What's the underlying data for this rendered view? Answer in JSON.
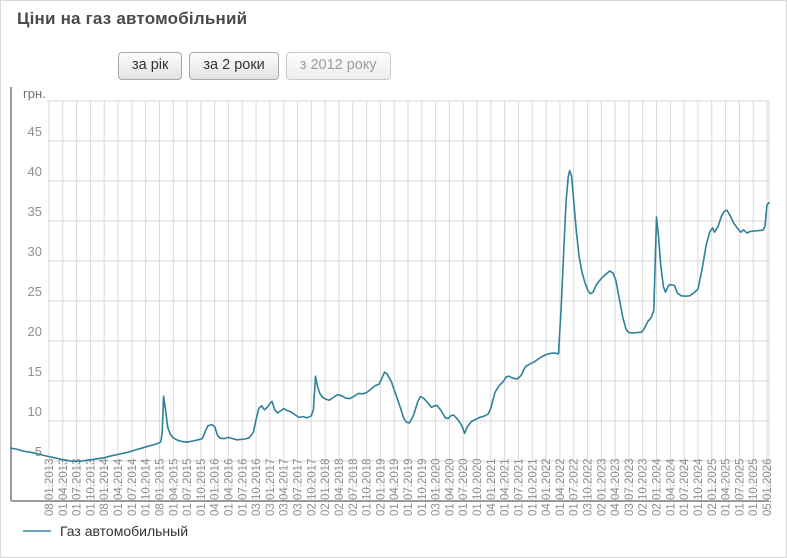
{
  "page": {
    "title": "Ціни на газ автомобільний"
  },
  "buttons": {
    "year_label": "за рік",
    "two_years_label": "за 2 роки",
    "since_2012_label": "з 2012 року"
  },
  "legend": {
    "label": "Газ автомобильный"
  },
  "colors": {
    "line": "#2f8099",
    "legend_line": "#6ba7bc",
    "grid": "#d9d9d9",
    "axis": "#9b9b9b",
    "tick_text": "#8f8f8f",
    "unit_text": "#6f6f6f"
  },
  "chart_data": {
    "type": "line",
    "title": "Ціни на газ автомобільний",
    "xlabel": "",
    "ylabel": "грн.",
    "unit_label": "грн.",
    "ylim": [
      0,
      50
    ],
    "y_ticks": [
      5,
      10,
      15,
      20,
      25,
      30,
      35,
      40,
      45
    ],
    "grid": true,
    "legend_position": "bottom-left",
    "x_tick_labels": [
      "08.01.2013",
      "01.04.2013",
      "01.07.2013",
      "01.10.2013",
      "08.01.2014",
      "01.04.2014",
      "01.07.2014",
      "01.10.2014",
      "08.01.2015",
      "01.04.2015",
      "01.07.2015",
      "01.10.2015",
      "04.01.2016",
      "01.04.2016",
      "01.07.2016",
      "03.10.2016",
      "03.01.2017",
      "03.04.2017",
      "03.07.2017",
      "02.10.2017",
      "02.01.2018",
      "02.04.2018",
      "02.07.2018",
      "01.10.2018",
      "02.01.2019",
      "01.04.2019",
      "01.07.2019",
      "01.10.2019",
      "03.01.2020",
      "01.04.2020",
      "01.07.2020",
      "01.10.2020",
      "04.01.2021",
      "01.04.2021",
      "01.07.2021",
      "01.10.2021",
      "04.01.2022",
      "01.04.2022",
      "01.07.2022",
      "03.10.2022",
      "02.01.2023",
      "04.04.2023",
      "03.07.2023",
      "02.10.2023",
      "02.01.2024",
      "01.04.2024",
      "01.07.2024",
      "01.10.2024",
      "02.01.2025",
      "01.04.2025",
      "01.07.2025",
      "01.10.2025",
      "05.01.2026"
    ],
    "series": [
      {
        "name": "Газ автомобильный",
        "unit": "грн.",
        "points": [
          [
            -2.75,
            6.6
          ],
          [
            -2.4,
            6.5
          ],
          [
            -2.0,
            6.3
          ],
          [
            -1.6,
            6.15
          ],
          [
            -1.2,
            6.05
          ],
          [
            -0.8,
            5.9
          ],
          [
            -0.4,
            5.7
          ],
          [
            0,
            5.55
          ],
          [
            0.4,
            5.4
          ],
          [
            0.8,
            5.25
          ],
          [
            1.2,
            5.1
          ],
          [
            1.6,
            5.0
          ],
          [
            2.0,
            4.95
          ],
          [
            2.4,
            5.0
          ],
          [
            2.8,
            5.1
          ],
          [
            3.2,
            5.2
          ],
          [
            3.6,
            5.3
          ],
          [
            4.0,
            5.4
          ],
          [
            4.4,
            5.6
          ],
          [
            4.8,
            5.75
          ],
          [
            5.2,
            5.9
          ],
          [
            5.6,
            6.05
          ],
          [
            6.0,
            6.25
          ],
          [
            6.4,
            6.45
          ],
          [
            6.8,
            6.65
          ],
          [
            7.2,
            6.85
          ],
          [
            7.6,
            7.05
          ],
          [
            7.9,
            7.2
          ],
          [
            8.1,
            7.4
          ],
          [
            8.2,
            8.6
          ],
          [
            8.3,
            13.1
          ],
          [
            8.45,
            11.2
          ],
          [
            8.6,
            9.2
          ],
          [
            8.8,
            8.3
          ],
          [
            9.0,
            7.9
          ],
          [
            9.3,
            7.6
          ],
          [
            9.6,
            7.45
          ],
          [
            10.0,
            7.35
          ],
          [
            10.4,
            7.5
          ],
          [
            10.8,
            7.65
          ],
          [
            11.1,
            7.8
          ],
          [
            11.3,
            8.6
          ],
          [
            11.5,
            9.4
          ],
          [
            11.8,
            9.55
          ],
          [
            12.0,
            9.3
          ],
          [
            12.2,
            8.2
          ],
          [
            12.4,
            7.85
          ],
          [
            12.7,
            7.8
          ],
          [
            13.0,
            7.95
          ],
          [
            13.3,
            7.8
          ],
          [
            13.6,
            7.65
          ],
          [
            13.9,
            7.7
          ],
          [
            14.2,
            7.75
          ],
          [
            14.5,
            7.9
          ],
          [
            14.8,
            8.6
          ],
          [
            15.0,
            10.2
          ],
          [
            15.2,
            11.6
          ],
          [
            15.4,
            11.9
          ],
          [
            15.6,
            11.4
          ],
          [
            15.8,
            11.7
          ],
          [
            16.0,
            12.2
          ],
          [
            16.15,
            12.45
          ],
          [
            16.35,
            11.4
          ],
          [
            16.55,
            11.0
          ],
          [
            16.8,
            11.3
          ],
          [
            17.0,
            11.55
          ],
          [
            17.2,
            11.35
          ],
          [
            17.5,
            11.15
          ],
          [
            17.8,
            10.8
          ],
          [
            18.1,
            10.45
          ],
          [
            18.4,
            10.55
          ],
          [
            18.7,
            10.4
          ],
          [
            19.0,
            10.65
          ],
          [
            19.15,
            11.4
          ],
          [
            19.3,
            15.6
          ],
          [
            19.45,
            14.3
          ],
          [
            19.6,
            13.5
          ],
          [
            19.8,
            13.0
          ],
          [
            20.0,
            12.75
          ],
          [
            20.3,
            12.6
          ],
          [
            20.6,
            12.95
          ],
          [
            20.9,
            13.3
          ],
          [
            21.2,
            13.15
          ],
          [
            21.5,
            12.85
          ],
          [
            21.8,
            12.8
          ],
          [
            22.1,
            13.1
          ],
          [
            22.4,
            13.45
          ],
          [
            22.7,
            13.4
          ],
          [
            23.0,
            13.55
          ],
          [
            23.3,
            13.95
          ],
          [
            23.6,
            14.4
          ],
          [
            23.9,
            14.6
          ],
          [
            24.1,
            15.3
          ],
          [
            24.3,
            16.1
          ],
          [
            24.5,
            15.85
          ],
          [
            24.8,
            14.9
          ],
          [
            25.1,
            13.4
          ],
          [
            25.4,
            11.9
          ],
          [
            25.7,
            10.3
          ],
          [
            25.9,
            9.85
          ],
          [
            26.1,
            9.75
          ],
          [
            26.4,
            10.7
          ],
          [
            26.7,
            12.4
          ],
          [
            26.9,
            13.05
          ],
          [
            27.1,
            12.9
          ],
          [
            27.4,
            12.35
          ],
          [
            27.7,
            11.7
          ],
          [
            27.9,
            11.9
          ],
          [
            28.1,
            11.95
          ],
          [
            28.4,
            11.3
          ],
          [
            28.7,
            10.4
          ],
          [
            28.9,
            10.3
          ],
          [
            29.1,
            10.65
          ],
          [
            29.3,
            10.75
          ],
          [
            29.6,
            10.2
          ],
          [
            29.9,
            9.4
          ],
          [
            30.1,
            8.45
          ],
          [
            30.3,
            9.3
          ],
          [
            30.6,
            9.95
          ],
          [
            30.9,
            10.2
          ],
          [
            31.2,
            10.45
          ],
          [
            31.5,
            10.6
          ],
          [
            31.8,
            10.85
          ],
          [
            32.0,
            11.6
          ],
          [
            32.3,
            13.6
          ],
          [
            32.6,
            14.4
          ],
          [
            32.9,
            14.95
          ],
          [
            33.1,
            15.5
          ],
          [
            33.3,
            15.6
          ],
          [
            33.6,
            15.35
          ],
          [
            33.9,
            15.25
          ],
          [
            34.2,
            15.7
          ],
          [
            34.5,
            16.8
          ],
          [
            34.8,
            17.1
          ],
          [
            35.1,
            17.35
          ],
          [
            35.4,
            17.7
          ],
          [
            35.7,
            18.05
          ],
          [
            36.0,
            18.3
          ],
          [
            36.3,
            18.45
          ],
          [
            36.6,
            18.5
          ],
          [
            36.9,
            18.4
          ],
          [
            37.1,
            24.5
          ],
          [
            37.3,
            32.0
          ],
          [
            37.45,
            37.5
          ],
          [
            37.6,
            40.5
          ],
          [
            37.7,
            41.3
          ],
          [
            37.85,
            40.6
          ],
          [
            38.0,
            37.5
          ],
          [
            38.2,
            33.5
          ],
          [
            38.4,
            30.5
          ],
          [
            38.6,
            28.6
          ],
          [
            38.8,
            27.4
          ],
          [
            39.0,
            26.4
          ],
          [
            39.2,
            25.9
          ],
          [
            39.4,
            26.1
          ],
          [
            39.6,
            26.9
          ],
          [
            39.8,
            27.4
          ],
          [
            40.0,
            27.8
          ],
          [
            40.3,
            28.3
          ],
          [
            40.6,
            28.75
          ],
          [
            40.85,
            28.5
          ],
          [
            41.05,
            27.6
          ],
          [
            41.3,
            25.3
          ],
          [
            41.55,
            23.0
          ],
          [
            41.8,
            21.4
          ],
          [
            42.0,
            21.05
          ],
          [
            42.3,
            21.0
          ],
          [
            42.6,
            21.05
          ],
          [
            42.9,
            21.1
          ],
          [
            43.1,
            21.5
          ],
          [
            43.35,
            22.4
          ],
          [
            43.6,
            22.9
          ],
          [
            43.8,
            23.8
          ],
          [
            44.0,
            35.5
          ],
          [
            44.15,
            33.0
          ],
          [
            44.3,
            29.5
          ],
          [
            44.5,
            26.8
          ],
          [
            44.65,
            26.1
          ],
          [
            44.85,
            26.9
          ],
          [
            45.0,
            27.05
          ],
          [
            45.3,
            26.95
          ],
          [
            45.5,
            26.0
          ],
          [
            45.8,
            25.65
          ],
          [
            46.1,
            25.6
          ],
          [
            46.4,
            25.65
          ],
          [
            46.7,
            26.0
          ],
          [
            47.0,
            26.5
          ],
          [
            47.3,
            29.0
          ],
          [
            47.6,
            32.0
          ],
          [
            47.85,
            33.6
          ],
          [
            48.05,
            34.15
          ],
          [
            48.2,
            33.6
          ],
          [
            48.45,
            34.3
          ],
          [
            48.7,
            35.6
          ],
          [
            48.9,
            36.2
          ],
          [
            49.1,
            36.35
          ],
          [
            49.35,
            35.6
          ],
          [
            49.6,
            34.7
          ],
          [
            49.9,
            34.0
          ],
          [
            50.1,
            33.6
          ],
          [
            50.3,
            33.9
          ],
          [
            50.55,
            33.5
          ],
          [
            50.8,
            33.7
          ],
          [
            51.1,
            33.75
          ],
          [
            51.4,
            33.8
          ],
          [
            51.7,
            33.85
          ],
          [
            51.85,
            34.3
          ],
          [
            52.0,
            37.0
          ],
          [
            52.15,
            37.3
          ]
        ]
      }
    ]
  }
}
